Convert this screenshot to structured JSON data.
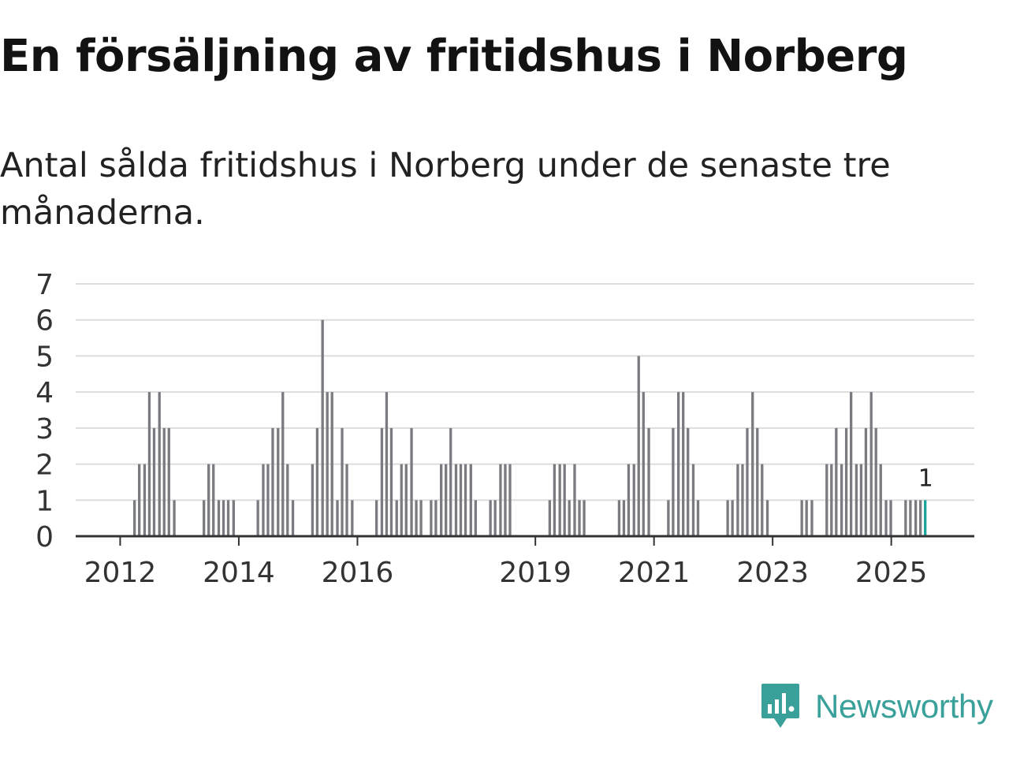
{
  "title": "En försäljning av fritidshus i Norberg",
  "subtitle": "Antal sålda fritidshus i Norberg under de senaste tre månaderna.",
  "brand": {
    "name": "Newsworthy",
    "color": "#3aa09a"
  },
  "colors": {
    "bar": "#7a7a80",
    "highlight": "#1aa39a",
    "grid": "#dddddd",
    "axis": "#333333",
    "tick_label": "#333333"
  },
  "chart_data": {
    "type": "bar",
    "title": "En försäljning av fritidshus i Norberg",
    "subtitle": "Antal sålda fritidshus i Norberg under de senaste tre månaderna.",
    "xlabel": "",
    "ylabel": "",
    "ylim": [
      0,
      7
    ],
    "yticks": [
      0,
      1,
      2,
      3,
      4,
      5,
      6,
      7
    ],
    "xlim": [
      2011.25,
      2026.4
    ],
    "xticks": [
      2012,
      2014,
      2016,
      2019,
      2021,
      2023,
      2025
    ],
    "grid": true,
    "bar_width_years": 0.06,
    "highlight_label": "1",
    "series": [
      {
        "name": "Antal sålda fritidshus",
        "points": [
          {
            "x": 2012.25,
            "y": 1
          },
          {
            "x": 2012.33,
            "y": 2
          },
          {
            "x": 2012.42,
            "y": 2
          },
          {
            "x": 2012.5,
            "y": 4
          },
          {
            "x": 2012.58,
            "y": 3
          },
          {
            "x": 2012.67,
            "y": 4
          },
          {
            "x": 2012.75,
            "y": 3
          },
          {
            "x": 2012.83,
            "y": 3
          },
          {
            "x": 2012.92,
            "y": 1
          },
          {
            "x": 2013.42,
            "y": 1
          },
          {
            "x": 2013.5,
            "y": 2
          },
          {
            "x": 2013.58,
            "y": 2
          },
          {
            "x": 2013.67,
            "y": 1
          },
          {
            "x": 2013.75,
            "y": 1
          },
          {
            "x": 2013.83,
            "y": 1
          },
          {
            "x": 2013.92,
            "y": 1
          },
          {
            "x": 2014.33,
            "y": 1
          },
          {
            "x": 2014.42,
            "y": 2
          },
          {
            "x": 2014.5,
            "y": 2
          },
          {
            "x": 2014.58,
            "y": 3
          },
          {
            "x": 2014.67,
            "y": 3
          },
          {
            "x": 2014.75,
            "y": 4
          },
          {
            "x": 2014.83,
            "y": 2
          },
          {
            "x": 2014.92,
            "y": 1
          },
          {
            "x": 2015.25,
            "y": 2
          },
          {
            "x": 2015.33,
            "y": 3
          },
          {
            "x": 2015.42,
            "y": 6
          },
          {
            "x": 2015.5,
            "y": 4
          },
          {
            "x": 2015.58,
            "y": 4
          },
          {
            "x": 2015.67,
            "y": 1
          },
          {
            "x": 2015.75,
            "y": 3
          },
          {
            "x": 2015.83,
            "y": 2
          },
          {
            "x": 2015.92,
            "y": 1
          },
          {
            "x": 2016.33,
            "y": 1
          },
          {
            "x": 2016.42,
            "y": 3
          },
          {
            "x": 2016.5,
            "y": 4
          },
          {
            "x": 2016.58,
            "y": 3
          },
          {
            "x": 2016.67,
            "y": 1
          },
          {
            "x": 2016.75,
            "y": 2
          },
          {
            "x": 2016.83,
            "y": 2
          },
          {
            "x": 2016.92,
            "y": 3
          },
          {
            "x": 2017.0,
            "y": 1
          },
          {
            "x": 2017.08,
            "y": 1
          },
          {
            "x": 2017.25,
            "y": 1
          },
          {
            "x": 2017.33,
            "y": 1
          },
          {
            "x": 2017.42,
            "y": 2
          },
          {
            "x": 2017.5,
            "y": 2
          },
          {
            "x": 2017.58,
            "y": 3
          },
          {
            "x": 2017.67,
            "y": 2
          },
          {
            "x": 2017.75,
            "y": 2
          },
          {
            "x": 2017.83,
            "y": 2
          },
          {
            "x": 2017.92,
            "y": 2
          },
          {
            "x": 2018.0,
            "y": 1
          },
          {
            "x": 2018.25,
            "y": 1
          },
          {
            "x": 2018.33,
            "y": 1
          },
          {
            "x": 2018.42,
            "y": 2
          },
          {
            "x": 2018.5,
            "y": 2
          },
          {
            "x": 2018.58,
            "y": 2
          },
          {
            "x": 2019.25,
            "y": 1
          },
          {
            "x": 2019.33,
            "y": 2
          },
          {
            "x": 2019.42,
            "y": 2
          },
          {
            "x": 2019.5,
            "y": 2
          },
          {
            "x": 2019.58,
            "y": 1
          },
          {
            "x": 2019.67,
            "y": 2
          },
          {
            "x": 2019.75,
            "y": 1
          },
          {
            "x": 2019.83,
            "y": 1
          },
          {
            "x": 2020.42,
            "y": 1
          },
          {
            "x": 2020.5,
            "y": 1
          },
          {
            "x": 2020.58,
            "y": 2
          },
          {
            "x": 2020.67,
            "y": 2
          },
          {
            "x": 2020.75,
            "y": 5
          },
          {
            "x": 2020.83,
            "y": 4
          },
          {
            "x": 2020.92,
            "y": 3
          },
          {
            "x": 2021.25,
            "y": 1
          },
          {
            "x": 2021.33,
            "y": 3
          },
          {
            "x": 2021.42,
            "y": 4
          },
          {
            "x": 2021.5,
            "y": 4
          },
          {
            "x": 2021.58,
            "y": 3
          },
          {
            "x": 2021.67,
            "y": 2
          },
          {
            "x": 2021.75,
            "y": 1
          },
          {
            "x": 2022.25,
            "y": 1
          },
          {
            "x": 2022.33,
            "y": 1
          },
          {
            "x": 2022.42,
            "y": 2
          },
          {
            "x": 2022.5,
            "y": 2
          },
          {
            "x": 2022.58,
            "y": 3
          },
          {
            "x": 2022.67,
            "y": 4
          },
          {
            "x": 2022.75,
            "y": 3
          },
          {
            "x": 2022.83,
            "y": 2
          },
          {
            "x": 2022.92,
            "y": 1
          },
          {
            "x": 2023.5,
            "y": 1
          },
          {
            "x": 2023.58,
            "y": 1
          },
          {
            "x": 2023.67,
            "y": 1
          },
          {
            "x": 2023.92,
            "y": 2
          },
          {
            "x": 2024.0,
            "y": 2
          },
          {
            "x": 2024.08,
            "y": 3
          },
          {
            "x": 2024.17,
            "y": 2
          },
          {
            "x": 2024.25,
            "y": 3
          },
          {
            "x": 2024.33,
            "y": 4
          },
          {
            "x": 2024.42,
            "y": 2
          },
          {
            "x": 2024.5,
            "y": 2
          },
          {
            "x": 2024.58,
            "y": 3
          },
          {
            "x": 2024.67,
            "y": 4
          },
          {
            "x": 2024.75,
            "y": 3
          },
          {
            "x": 2024.83,
            "y": 2
          },
          {
            "x": 2024.92,
            "y": 1
          },
          {
            "x": 2025.0,
            "y": 1
          },
          {
            "x": 2025.25,
            "y": 1
          },
          {
            "x": 2025.33,
            "y": 1
          },
          {
            "x": 2025.42,
            "y": 1
          },
          {
            "x": 2025.5,
            "y": 1
          },
          {
            "x": 2025.58,
            "y": 1,
            "highlight": true
          }
        ]
      }
    ]
  }
}
